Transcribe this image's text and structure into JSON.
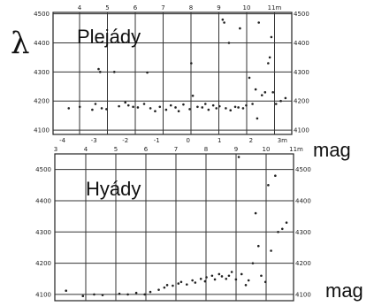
{
  "side_labels": {
    "lambda": "λ",
    "mag_top": "mag",
    "mag_bottom": "mag"
  },
  "chart_data": [
    {
      "type": "scatter",
      "title": "Plejády",
      "x_ticks_top": [
        "4",
        "5",
        "6",
        "7",
        "8",
        "9",
        "10",
        "11m"
      ],
      "x_ticks_bottom": [
        "-4",
        "-3",
        "-2",
        "-1",
        "0",
        "1",
        "2",
        "3m"
      ],
      "y_ticks": [
        "4100",
        "4200",
        "4300",
        "4400",
        "4500"
      ],
      "y_ticks_right": [
        "4100",
        "4200",
        "4300",
        "4400",
        "4500"
      ],
      "xlim": [
        -4.3,
        3.3
      ],
      "ylim": [
        4085,
        4505
      ],
      "grid": true,
      "points": [
        {
          "x": -3.8,
          "y": 4175
        },
        {
          "x": -3.45,
          "y": 4180
        },
        {
          "x": -3.05,
          "y": 4170
        },
        {
          "x": -2.95,
          "y": 4190
        },
        {
          "x": -2.85,
          "y": 4310
        },
        {
          "x": -2.8,
          "y": 4300
        },
        {
          "x": -2.75,
          "y": 4175
        },
        {
          "x": -2.6,
          "y": 4172
        },
        {
          "x": -2.35,
          "y": 4300
        },
        {
          "x": -2.2,
          "y": 4182
        },
        {
          "x": -2.0,
          "y": 4195
        },
        {
          "x": -1.9,
          "y": 4185
        },
        {
          "x": -1.75,
          "y": 4180
        },
        {
          "x": -1.6,
          "y": 4178
        },
        {
          "x": -1.4,
          "y": 4190
        },
        {
          "x": -1.3,
          "y": 4298
        },
        {
          "x": -1.2,
          "y": 4175
        },
        {
          "x": -1.05,
          "y": 4165
        },
        {
          "x": -0.9,
          "y": 4180
        },
        {
          "x": -0.7,
          "y": 4170
        },
        {
          "x": -0.55,
          "y": 4185
        },
        {
          "x": -0.4,
          "y": 4178
        },
        {
          "x": -0.3,
          "y": 4165
        },
        {
          "x": -0.15,
          "y": 4188
        },
        {
          "x": 0.05,
          "y": 4172
        },
        {
          "x": 0.1,
          "y": 4330
        },
        {
          "x": 0.15,
          "y": 4218
        },
        {
          "x": 0.3,
          "y": 4180
        },
        {
          "x": 0.45,
          "y": 4178
        },
        {
          "x": 0.55,
          "y": 4190
        },
        {
          "x": 0.65,
          "y": 4170
        },
        {
          "x": 0.8,
          "y": 4185
        },
        {
          "x": 0.9,
          "y": 4175
        },
        {
          "x": 1.0,
          "y": 4182
        },
        {
          "x": 1.1,
          "y": 4480
        },
        {
          "x": 1.15,
          "y": 4470
        },
        {
          "x": 1.2,
          "y": 4175
        },
        {
          "x": 1.3,
          "y": 4400
        },
        {
          "x": 1.35,
          "y": 4168
        },
        {
          "x": 1.5,
          "y": 4180
        },
        {
          "x": 1.6,
          "y": 4178
        },
        {
          "x": 1.65,
          "y": 4450
        },
        {
          "x": 1.75,
          "y": 4175
        },
        {
          "x": 1.85,
          "y": 4185
        },
        {
          "x": 1.95,
          "y": 4280
        },
        {
          "x": 2.05,
          "y": 4190
        },
        {
          "x": 2.15,
          "y": 4240
        },
        {
          "x": 2.2,
          "y": 4140
        },
        {
          "x": 2.25,
          "y": 4470
        },
        {
          "x": 2.35,
          "y": 4220
        },
        {
          "x": 2.45,
          "y": 4230
        },
        {
          "x": 2.55,
          "y": 4330
        },
        {
          "x": 2.6,
          "y": 4350
        },
        {
          "x": 2.65,
          "y": 4420
        },
        {
          "x": 2.7,
          "y": 4230
        },
        {
          "x": 2.8,
          "y": 4190
        },
        {
          "x": 2.95,
          "y": 4200
        },
        {
          "x": 3.1,
          "y": 4210
        }
      ]
    },
    {
      "type": "scatter",
      "title": "Hyády",
      "x_ticks_top": [
        "3",
        "4",
        "5",
        "6",
        "7",
        "8",
        "9",
        "10",
        "11m"
      ],
      "y_ticks": [
        "4100",
        "4200",
        "4300",
        "4400",
        "4500"
      ],
      "y_ticks_right": [
        "4100",
        "4200",
        "4300",
        "4400",
        "4500"
      ],
      "xlim": [
        2.6,
        11.1
      ],
      "ylim": [
        4080,
        4550
      ],
      "grid": true,
      "points": [
        {
          "x": 3.0,
          "y": 4112
        },
        {
          "x": 3.6,
          "y": 4095
        },
        {
          "x": 4.0,
          "y": 4100
        },
        {
          "x": 4.3,
          "y": 4098
        },
        {
          "x": 4.9,
          "y": 4102
        },
        {
          "x": 5.2,
          "y": 4100
        },
        {
          "x": 5.5,
          "y": 4105
        },
        {
          "x": 5.8,
          "y": 4100
        },
        {
          "x": 6.0,
          "y": 4108
        },
        {
          "x": 6.3,
          "y": 4115
        },
        {
          "x": 6.5,
          "y": 4122
        },
        {
          "x": 6.6,
          "y": 4130
        },
        {
          "x": 6.8,
          "y": 4128
        },
        {
          "x": 7.0,
          "y": 4135
        },
        {
          "x": 7.1,
          "y": 4140
        },
        {
          "x": 7.3,
          "y": 4132
        },
        {
          "x": 7.5,
          "y": 4145
        },
        {
          "x": 7.6,
          "y": 4138
        },
        {
          "x": 7.8,
          "y": 4150
        },
        {
          "x": 7.95,
          "y": 4142
        },
        {
          "x": 8.0,
          "y": 4155
        },
        {
          "x": 8.2,
          "y": 4160
        },
        {
          "x": 8.3,
          "y": 4148
        },
        {
          "x": 8.45,
          "y": 4165
        },
        {
          "x": 8.55,
          "y": 4158
        },
        {
          "x": 8.7,
          "y": 4150
        },
        {
          "x": 8.8,
          "y": 4160
        },
        {
          "x": 8.9,
          "y": 4172
        },
        {
          "x": 9.05,
          "y": 4148
        },
        {
          "x": 9.15,
          "y": 4540
        },
        {
          "x": 9.25,
          "y": 4165
        },
        {
          "x": 9.4,
          "y": 4130
        },
        {
          "x": 9.5,
          "y": 4145
        },
        {
          "x": 9.65,
          "y": 4200
        },
        {
          "x": 9.75,
          "y": 4360
        },
        {
          "x": 9.85,
          "y": 4255
        },
        {
          "x": 9.95,
          "y": 4160
        },
        {
          "x": 10.1,
          "y": 4140
        },
        {
          "x": 10.2,
          "y": 4450
        },
        {
          "x": 10.3,
          "y": 4240
        },
        {
          "x": 10.45,
          "y": 4480
        },
        {
          "x": 10.55,
          "y": 4300
        },
        {
          "x": 10.7,
          "y": 4310
        },
        {
          "x": 10.85,
          "y": 4330
        }
      ]
    }
  ]
}
